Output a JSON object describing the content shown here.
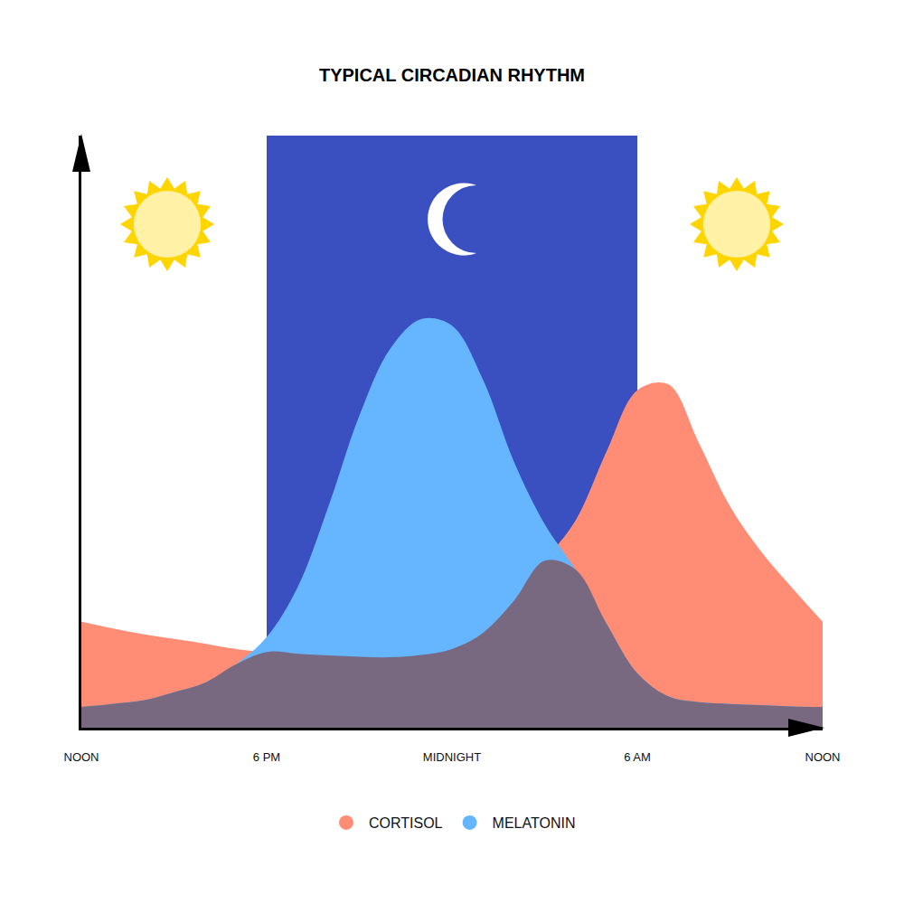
{
  "chart_data": {
    "type": "area",
    "title": "TYPICAL CIRCADIAN RHYTHM",
    "x": [
      0,
      1,
      2,
      3,
      4,
      5,
      6,
      7,
      8,
      9,
      10,
      11,
      12,
      13,
      14,
      15,
      16,
      17,
      18,
      19,
      20,
      21,
      22,
      23,
      24
    ],
    "series": [
      {
        "name": "CORTISOL",
        "color": "#FF8C75",
        "values": [
          17.9,
          16.8,
          15.8,
          15,
          14.2,
          13.3,
          12.8,
          12.5,
          12.2,
          12,
          11.9,
          12.3,
          13.3,
          16,
          21.4,
          28.2,
          35,
          46.6,
          57,
          58,
          48,
          37.4,
          29.8,
          23.7,
          17.9
        ]
      },
      {
        "name": "MELATONIN",
        "color": "#66B5FF",
        "values": [
          3.5,
          4,
          4.6,
          6,
          7.6,
          10.7,
          15.3,
          23.7,
          37.4,
          52.7,
          64,
          69,
          67.9,
          58.8,
          45,
          34.4,
          26.7,
          17.6,
          9.2,
          5.3,
          4.3,
          4,
          3.8,
          3.6,
          3.5
        ]
      }
    ],
    "xlim": [
      0,
      24
    ],
    "xticks": [
      {
        "value": 0,
        "label": "NOON"
      },
      {
        "value": 6,
        "label": "6 PM"
      },
      {
        "value": 12,
        "label": "MIDNIGHT"
      },
      {
        "value": 18,
        "label": "6 AM"
      },
      {
        "value": 24,
        "label": "NOON"
      }
    ],
    "ylim": [
      0,
      100
    ],
    "tick_labels": "x",
    "legend": "bottom",
    "grid": false
  }
}
